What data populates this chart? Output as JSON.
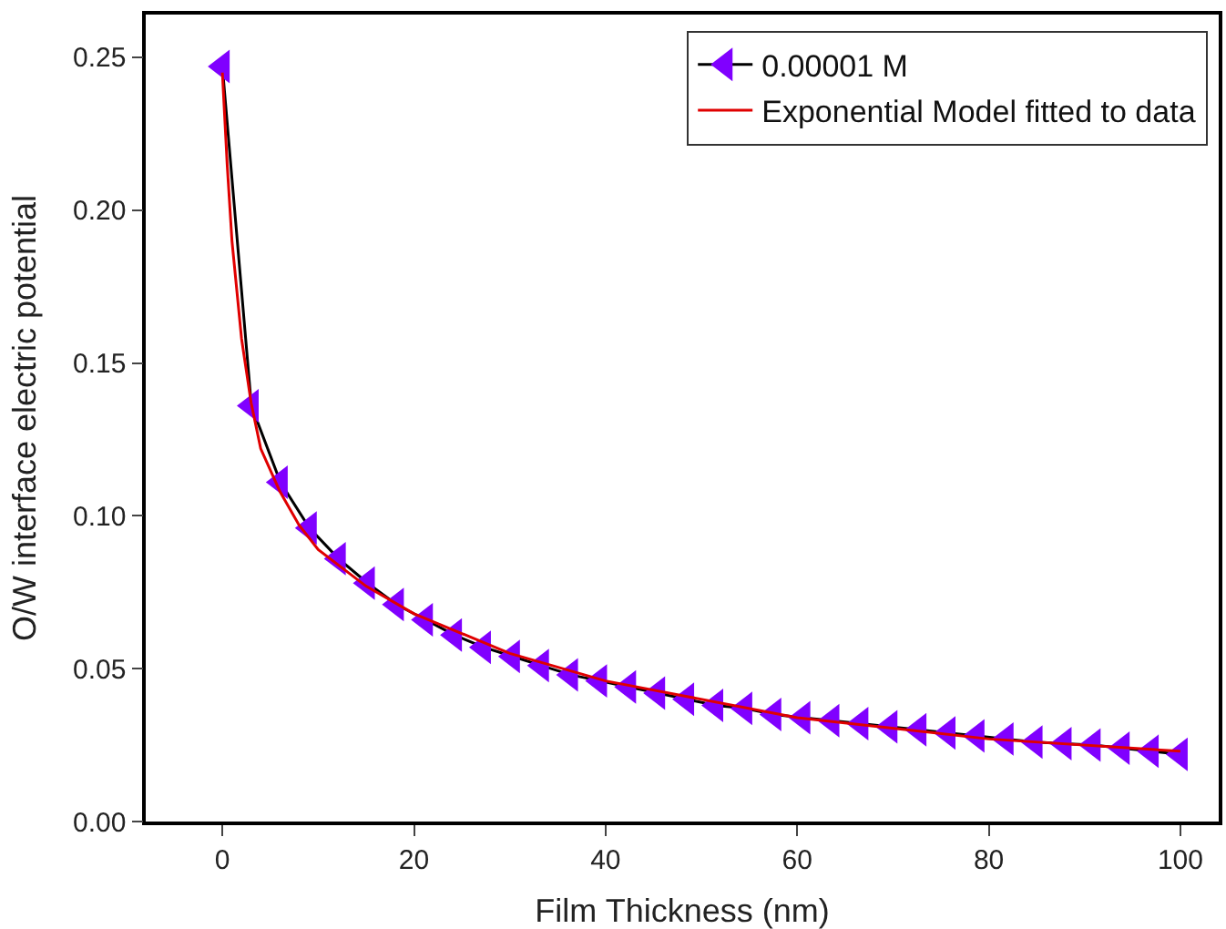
{
  "chart_data": {
    "type": "line",
    "xlabel": "Film Thickness (nm)",
    "ylabel": "O/W interface electric potential",
    "xlim": [
      -8,
      104
    ],
    "xticks": [
      0,
      20,
      40,
      60,
      80,
      100
    ],
    "ylim": [
      0,
      0.264
    ],
    "yticks": [
      {
        "value": 0,
        "label": "0.00"
      },
      0.05,
      {
        "value": 0.1,
        "label": "0.10"
      },
      0.15,
      {
        "value": 0.2,
        "label": "0.20"
      },
      0.25
    ],
    "legend": "top right",
    "series": [
      {
        "name": "0.00001 M",
        "color": "#000000",
        "colors": [
          "#8000ff",
          "#8000ff",
          "#8000ff",
          "#8000ff",
          "#8000ff",
          "#8000ff",
          "#8000ff",
          "#8000ff",
          "#8000ff",
          "#8000ff",
          "#8000ff",
          "#8000ff",
          "#8000ff",
          "#8000ff",
          "#8000ff",
          "#8000ff",
          "#8000ff",
          "#8000ff",
          "#8000ff",
          "#8000ff",
          "#8000ff",
          "#8000ff",
          "#8000ff",
          "#8000ff",
          "#8000ff",
          "#8000ff",
          "#8000ff",
          "#8000ff",
          "#8000ff",
          "#8000ff",
          "#8000ff",
          "#8000ff",
          "#8000ff",
          "#8000ff"
        ],
        "marker": "triangle",
        "x": [
          0,
          3.03,
          6.06,
          9.09,
          12.12,
          15.15,
          18.18,
          21.21,
          24.24,
          27.27,
          30.3,
          33.33,
          36.36,
          39.39,
          42.42,
          45.45,
          48.48,
          51.52,
          54.55,
          57.58,
          60.61,
          63.64,
          66.67,
          69.7,
          72.73,
          75.76,
          78.79,
          81.82,
          84.85,
          87.88,
          90.91,
          93.94,
          96.97,
          100
        ],
        "values": [
          0.247,
          0.136,
          0.111,
          0.096,
          0.086,
          0.078,
          0.071,
          0.066,
          0.061,
          0.057,
          0.054,
          0.051,
          0.048,
          0.046,
          0.044,
          0.042,
          0.04,
          0.038,
          0.037,
          0.035,
          0.034,
          0.033,
          0.032,
          0.031,
          0.03,
          0.029,
          0.028,
          0.027,
          0.026,
          0.0255,
          0.025,
          0.024,
          0.023,
          0.022
        ]
      },
      {
        "name": "Exponential Model fitted to data",
        "color": "#e00000",
        "marker": "none",
        "x": [
          0,
          0.5,
          1,
          2,
          3,
          4,
          6,
          8,
          10,
          15,
          20,
          30,
          40,
          60,
          80,
          100
        ],
        "values": [
          0.245,
          0.215,
          0.19,
          0.158,
          0.137,
          0.122,
          0.108,
          0.097,
          0.089,
          0.077,
          0.068,
          0.055,
          0.046,
          0.034,
          0.027,
          0.023
        ]
      }
    ]
  }
}
